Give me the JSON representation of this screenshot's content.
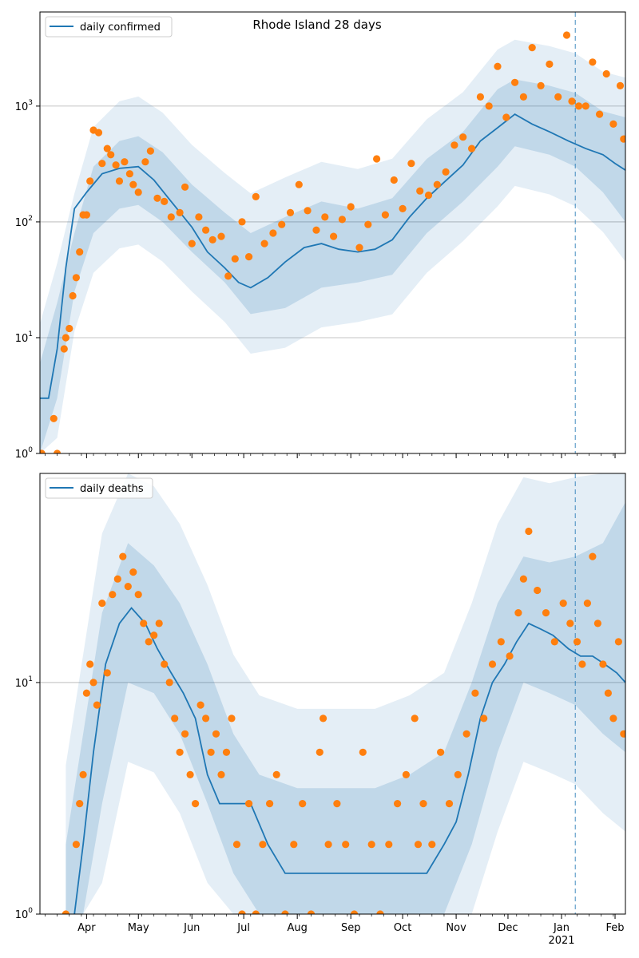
{
  "chart_data": [
    {
      "type": "line",
      "title": "Rhode Island 28 days",
      "y_scale": "log",
      "ylim": [
        1,
        6500
      ],
      "x_range": [
        "2020-03-05",
        "2021-02-07"
      ],
      "y_ticks": [
        {
          "value": 1,
          "label": "10",
          "exp": "0"
        },
        {
          "value": 10,
          "label": "10",
          "exp": "1"
        },
        {
          "value": 100,
          "label": "10",
          "exp": "2"
        },
        {
          "value": 1000,
          "label": "10",
          "exp": "3"
        }
      ],
      "grid": "horizontal",
      "legend": {
        "label": "daily confirmed",
        "placement": "upper-left"
      },
      "forecast_start": "2021-01-09",
      "colors": {
        "line": "#1f77b4",
        "points": "#ff7f0e",
        "band": "#1f77b4",
        "forecast_line": "#1f77b4"
      },
      "series": [
        {
          "name": "daily confirmed",
          "kind": "line",
          "x": [
            "2020-03-05",
            "2020-03-10",
            "2020-03-15",
            "2020-03-20",
            "2020-03-25",
            "2020-04-01",
            "2020-04-10",
            "2020-04-20",
            "2020-05-01",
            "2020-05-10",
            "2020-05-20",
            "2020-06-01",
            "2020-06-10",
            "2020-06-20",
            "2020-06-28",
            "2020-07-05",
            "2020-07-15",
            "2020-07-25",
            "2020-08-05",
            "2020-08-15",
            "2020-08-25",
            "2020-09-05",
            "2020-09-15",
            "2020-09-25",
            "2020-10-05",
            "2020-10-15",
            "2020-10-25",
            "2020-11-05",
            "2020-11-15",
            "2020-11-25",
            "2020-12-05",
            "2020-12-15",
            "2020-12-25",
            "2021-01-05",
            "2021-01-15",
            "2021-01-25",
            "2021-02-01",
            "2021-02-07"
          ],
          "y": [
            3,
            3,
            8,
            40,
            130,
            180,
            260,
            290,
            300,
            230,
            150,
            90,
            55,
            40,
            30,
            27,
            33,
            45,
            60,
            65,
            58,
            55,
            58,
            70,
            110,
            160,
            220,
            310,
            500,
            650,
            850,
            700,
            600,
            500,
            430,
            380,
            320,
            280
          ]
        },
        {
          "name": "",
          "kind": "band",
          "x": [
            "2020-03-05",
            "2020-03-15",
            "2020-03-25",
            "2020-04-05",
            "2020-04-20",
            "2020-05-01",
            "2020-05-15",
            "2020-06-01",
            "2020-06-20",
            "2020-07-05",
            "2020-07-25",
            "2020-08-15",
            "2020-09-05",
            "2020-09-25",
            "2020-10-15",
            "2020-11-05",
            "2020-11-25",
            "2020-12-05",
            "2020-12-25",
            "2021-01-09",
            "2021-01-25",
            "2021-02-07"
          ],
          "lower": [
            1,
            3,
            25,
            80,
            130,
            140,
            100,
            55,
            30,
            16,
            18,
            27,
            30,
            35,
            80,
            150,
            300,
            450,
            380,
            300,
            180,
            100
          ],
          "upper": [
            6,
            20,
            80,
            300,
            500,
            550,
            400,
            210,
            120,
            80,
            110,
            150,
            130,
            160,
            350,
            600,
            1400,
            1700,
            1500,
            1300,
            900,
            800
          ]
        },
        {
          "name": "",
          "kind": "points",
          "x": [
            "2020-03-06",
            "2020-03-13",
            "2020-03-15",
            "2020-03-19",
            "2020-03-20",
            "2020-03-22",
            "2020-03-24",
            "2020-03-26",
            "2020-03-28",
            "2020-03-30",
            "2020-04-01",
            "2020-04-03",
            "2020-04-05",
            "2020-04-08",
            "2020-04-10",
            "2020-04-13",
            "2020-04-15",
            "2020-04-18",
            "2020-04-20",
            "2020-04-23",
            "2020-04-26",
            "2020-04-28",
            "2020-05-01",
            "2020-05-05",
            "2020-05-08",
            "2020-05-12",
            "2020-05-16",
            "2020-05-20",
            "2020-05-25",
            "2020-05-28",
            "2020-06-01",
            "2020-06-05",
            "2020-06-09",
            "2020-06-13",
            "2020-06-18",
            "2020-06-22",
            "2020-06-26",
            "2020-06-30",
            "2020-07-04",
            "2020-07-08",
            "2020-07-13",
            "2020-07-18",
            "2020-07-23",
            "2020-07-28",
            "2020-08-02",
            "2020-08-07",
            "2020-08-12",
            "2020-08-17",
            "2020-08-22",
            "2020-08-27",
            "2020-09-01",
            "2020-09-06",
            "2020-09-11",
            "2020-09-16",
            "2020-09-21",
            "2020-09-26",
            "2020-10-01",
            "2020-10-06",
            "2020-10-11",
            "2020-10-16",
            "2020-10-21",
            "2020-10-26",
            "2020-10-31",
            "2020-11-05",
            "2020-11-10",
            "2020-11-15",
            "2020-11-20",
            "2020-11-25",
            "2020-11-30",
            "2020-12-05",
            "2020-12-10",
            "2020-12-15",
            "2020-12-20",
            "2020-12-25",
            "2020-12-30",
            "2021-01-04",
            "2021-01-07",
            "2021-01-11",
            "2021-01-15",
            "2021-01-19",
            "2021-01-23",
            "2021-01-27",
            "2021-01-31",
            "2021-02-04",
            "2021-02-06"
          ],
          "y": [
            1,
            2,
            1,
            8,
            10,
            12,
            23,
            33,
            55,
            115,
            115,
            225,
            620,
            590,
            320,
            430,
            380,
            310,
            225,
            330,
            260,
            210,
            180,
            330,
            410,
            160,
            150,
            110,
            120,
            200,
            65,
            110,
            85,
            70,
            75,
            34,
            48,
            100,
            50,
            165,
            65,
            80,
            95,
            120,
            210,
            125,
            85,
            110,
            75,
            105,
            135,
            60,
            95,
            350,
            115,
            230,
            130,
            320,
            185,
            170,
            210,
            270,
            460,
            540,
            430,
            1200,
            1000,
            2200,
            800,
            1600,
            1200,
            3200,
            1500,
            2300,
            1200,
            4100,
            1100,
            1000,
            1000,
            2400,
            850,
            1900,
            700,
            1500,
            520
          ]
        }
      ]
    },
    {
      "type": "line",
      "title": "",
      "y_scale": "log",
      "ylim": [
        1,
        80
      ],
      "x_range": [
        "2020-03-05",
        "2021-02-07"
      ],
      "y_ticks": [
        {
          "value": 1,
          "label": "10",
          "exp": "0"
        },
        {
          "value": 10,
          "label": "10",
          "exp": "1"
        }
      ],
      "grid": "horizontal",
      "legend": {
        "label": "daily deaths",
        "placement": "upper-left"
      },
      "forecast_start": "2021-01-09",
      "x_ticks": [
        {
          "date": "2020-04-01",
          "label": "Apr"
        },
        {
          "date": "2020-05-01",
          "label": "May"
        },
        {
          "date": "2020-06-01",
          "label": "Jun"
        },
        {
          "date": "2020-07-01",
          "label": "Jul"
        },
        {
          "date": "2020-08-01",
          "label": "Aug"
        },
        {
          "date": "2020-09-01",
          "label": "Sep"
        },
        {
          "date": "2020-10-01",
          "label": "Oct"
        },
        {
          "date": "2020-11-01",
          "label": "Nov"
        },
        {
          "date": "2020-12-01",
          "label": "Dec"
        },
        {
          "date": "2021-01-01",
          "label": "Jan",
          "sublabel": "2021"
        },
        {
          "date": "2021-02-01",
          "label": "Feb"
        }
      ],
      "colors": {
        "line": "#1f77b4",
        "points": "#ff7f0e",
        "band": "#1f77b4",
        "forecast_line": "#1f77b4"
      },
      "series": [
        {
          "name": "daily deaths",
          "kind": "line",
          "x": [
            "2020-03-25",
            "2020-03-30",
            "2020-04-05",
            "2020-04-12",
            "2020-04-20",
            "2020-04-27",
            "2020-05-05",
            "2020-05-12",
            "2020-05-20",
            "2020-05-27",
            "2020-06-03",
            "2020-06-10",
            "2020-06-17",
            "2020-06-24",
            "2020-07-05",
            "2020-07-15",
            "2020-07-25",
            "2020-08-10",
            "2020-08-25",
            "2020-09-10",
            "2020-09-25",
            "2020-10-05",
            "2020-10-15",
            "2020-10-25",
            "2020-11-01",
            "2020-11-08",
            "2020-11-15",
            "2020-11-22",
            "2020-11-29",
            "2020-12-06",
            "2020-12-13",
            "2020-12-20",
            "2020-12-27",
            "2021-01-05",
            "2021-01-12",
            "2021-01-19",
            "2021-01-26",
            "2021-02-02",
            "2021-02-07"
          ],
          "y": [
            1,
            2,
            5,
            12,
            18,
            21,
            18,
            14,
            11,
            9,
            7,
            4,
            3,
            3,
            3,
            2,
            1.5,
            1.5,
            1.5,
            1.5,
            1.5,
            1.5,
            1.5,
            2,
            2.5,
            4,
            7,
            10,
            12,
            15,
            18,
            17,
            16,
            14,
            13,
            13,
            12,
            11,
            10
          ]
        },
        {
          "name": "",
          "kind": "band",
          "x": [
            "2020-03-20",
            "2020-03-30",
            "2020-04-10",
            "2020-04-25",
            "2020-05-10",
            "2020-05-25",
            "2020-06-10",
            "2020-06-25",
            "2020-07-10",
            "2020-08-01",
            "2020-08-25",
            "2020-09-15",
            "2020-10-05",
            "2020-10-25",
            "2020-11-10",
            "2020-11-25",
            "2020-12-10",
            "2020-12-25",
            "2021-01-09",
            "2021-01-25",
            "2021-02-07"
          ],
          "lower": [
            1,
            1,
            3,
            10,
            9,
            6,
            3,
            1.5,
            1,
            1,
            1,
            1,
            1,
            1,
            2,
            5,
            10,
            9,
            8,
            6,
            5
          ],
          "upper": [
            2,
            6,
            20,
            40,
            32,
            22,
            12,
            6,
            4,
            3.5,
            3.5,
            3.5,
            4,
            5,
            10,
            22,
            35,
            33,
            35,
            40,
            60
          ]
        },
        {
          "name": "",
          "kind": "points",
          "x": [
            "2020-03-20",
            "2020-03-26",
            "2020-03-28",
            "2020-03-30",
            "2020-04-01",
            "2020-04-03",
            "2020-04-05",
            "2020-04-07",
            "2020-04-10",
            "2020-04-13",
            "2020-04-16",
            "2020-04-19",
            "2020-04-22",
            "2020-04-25",
            "2020-04-28",
            "2020-05-01",
            "2020-05-04",
            "2020-05-07",
            "2020-05-10",
            "2020-05-13",
            "2020-05-16",
            "2020-05-19",
            "2020-05-22",
            "2020-05-25",
            "2020-05-28",
            "2020-05-31",
            "2020-06-03",
            "2020-06-06",
            "2020-06-09",
            "2020-06-12",
            "2020-06-15",
            "2020-06-18",
            "2020-06-21",
            "2020-06-24",
            "2020-06-27",
            "2020-06-30",
            "2020-07-04",
            "2020-07-08",
            "2020-07-12",
            "2020-07-16",
            "2020-07-20",
            "2020-07-25",
            "2020-07-30",
            "2020-08-04",
            "2020-08-09",
            "2020-08-14",
            "2020-08-16",
            "2020-08-19",
            "2020-08-24",
            "2020-08-29",
            "2020-09-03",
            "2020-09-08",
            "2020-09-13",
            "2020-09-18",
            "2020-09-23",
            "2020-09-28",
            "2020-10-03",
            "2020-10-08",
            "2020-10-10",
            "2020-10-13",
            "2020-10-18",
            "2020-10-23",
            "2020-10-28",
            "2020-11-02",
            "2020-11-07",
            "2020-11-12",
            "2020-11-17",
            "2020-11-22",
            "2020-11-27",
            "2020-12-02",
            "2020-12-07",
            "2020-12-10",
            "2020-12-13",
            "2020-12-18",
            "2020-12-23",
            "2020-12-28",
            "2021-01-02",
            "2021-01-06",
            "2021-01-10",
            "2021-01-13",
            "2021-01-16",
            "2021-01-19",
            "2021-01-22",
            "2021-01-25",
            "2021-01-28",
            "2021-01-31",
            "2021-02-03",
            "2021-02-06"
          ],
          "y": [
            1,
            2,
            3,
            4,
            9,
            12,
            10,
            8,
            22,
            11,
            24,
            28,
            35,
            26,
            30,
            24,
            18,
            15,
            16,
            18,
            12,
            10,
            7,
            5,
            6,
            4,
            3,
            8,
            7,
            5,
            6,
            4,
            5,
            7,
            2,
            1,
            3,
            1,
            2,
            3,
            4,
            1,
            2,
            3,
            1,
            5,
            7,
            2,
            3,
            2,
            1,
            5,
            2,
            1,
            2,
            3,
            4,
            7,
            2,
            3,
            2,
            5,
            3,
            4,
            6,
            9,
            7,
            12,
            15,
            13,
            20,
            28,
            45,
            25,
            20,
            15,
            22,
            18,
            15,
            12,
            22,
            35,
            18,
            12,
            9,
            7,
            15,
            6
          ]
        }
      ]
    }
  ]
}
